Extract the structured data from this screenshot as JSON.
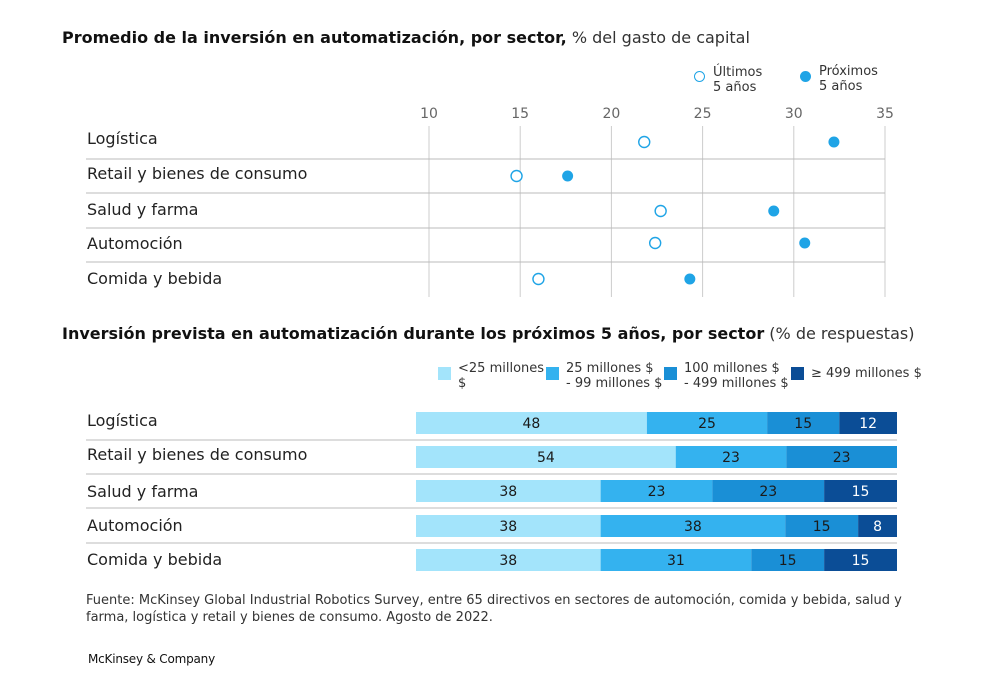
{
  "chart_data": [
    {
      "type": "scatter",
      "title_bold": "Promedio de la inversión en automatización, por sector,",
      "title_rest": " % del gasto de capital",
      "categories": [
        "Logística",
        "Retail y bienes de consumo",
        "Salud y farma",
        "Automoción",
        "Comida y bebida"
      ],
      "xlim": [
        10,
        35
      ],
      "xticks": [
        "10",
        "15",
        "20",
        "25",
        "30",
        "35"
      ],
      "legend_position": "top-right",
      "series": [
        {
          "name": "Últimos 5 años",
          "marker": "open-circle",
          "color": "#1fa4e6",
          "values": [
            21.8,
            14.8,
            22.7,
            22.4,
            16.0
          ]
        },
        {
          "name": "Próximos 5 años",
          "marker": "filled-circle",
          "color": "#1fa4e6",
          "values": [
            32.2,
            17.6,
            28.9,
            30.6,
            24.3
          ]
        }
      ],
      "grid": true
    },
    {
      "type": "bar",
      "orientation": "horizontal-stacked",
      "title_bold": "Inversión prevista en automatización durante los próximos 5 años, por sector",
      "title_rest": " (% de respuestas)",
      "categories": [
        "Logística",
        "Retail y bienes de consumo",
        "Salud y farma",
        "Automoción",
        "Comida y bebida"
      ],
      "legend_position": "top-right",
      "series": [
        {
          "name": "<25 millones $",
          "color": "#a3e4fb",
          "values": [
            48,
            54,
            38,
            38,
            38
          ]
        },
        {
          "name": "25 millones $ - 99 millones $",
          "color": "#34b2ef",
          "values": [
            25,
            23,
            23,
            38,
            31
          ]
        },
        {
          "name": "100 millones $ - 499 millones $",
          "color": "#1a8fd6",
          "values": [
            15,
            23,
            23,
            15,
            15
          ]
        },
        {
          "name": "≥ 499 millones $",
          "color": "#0b4d96",
          "values": [
            12,
            0,
            15,
            8,
            15
          ]
        }
      ],
      "segment_labels": [
        [
          "48",
          "25",
          "15",
          "12"
        ],
        [
          "54",
          "23",
          "23",
          ""
        ],
        [
          "38",
          "23",
          "23",
          "15"
        ],
        [
          "38",
          "38",
          "15",
          "8"
        ],
        [
          "38",
          "31",
          "15",
          "15"
        ]
      ]
    }
  ],
  "legend1": {
    "last": [
      "Últimos",
      "5 años"
    ],
    "next": [
      "Próximos",
      "5 años"
    ]
  },
  "legend2": {
    "a": [
      "<25 millones",
      "$"
    ],
    "b": [
      "25 millones $",
      "- 99 millones $"
    ],
    "c": [
      "100 millones $",
      "- 499 millones $"
    ],
    "d": [
      "≥ 499 millones $"
    ]
  },
  "footnote": "Fuente: McKinsey Global Industrial Robotics Survey, entre 65 directivos en sectores de automoción, comida y bebida, salud y farma, logística y retail y bienes de consumo. Agosto de 2022.",
  "brand": "McKinsey & Company",
  "colors": {
    "dot": "#1fa4e6",
    "grid": "#cccccc",
    "row_line": "#bbbbbb"
  }
}
